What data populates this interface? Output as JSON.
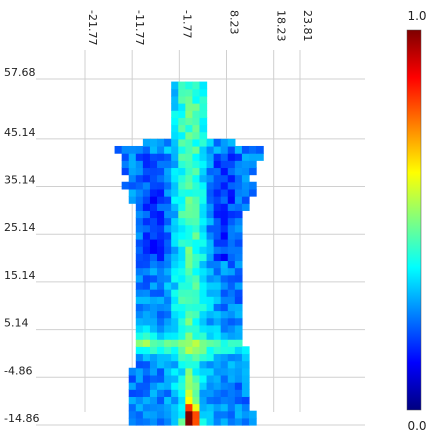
{
  "chart_data": {
    "type": "heatmap",
    "title": "",
    "xlabel": "",
    "ylabel": "",
    "x_ticks": [
      "-21.77",
      "-11.77",
      "-1.77",
      "8.23",
      "18.23",
      "23.81"
    ],
    "y_ticks": [
      "57.68",
      "45.14",
      "35.14",
      "25.14",
      "15.14",
      "5.14",
      "-4.86",
      "-14.86"
    ],
    "xlim": [
      -21.77,
      23.81
    ],
    "ylim": [
      -14.86,
      57.68
    ],
    "grid": true,
    "colorbar": {
      "min_label": "0.0",
      "max_label": "1.0",
      "colormap": "jet",
      "range": [
        0.0,
        1.0
      ]
    },
    "colormap_stops": [
      "#00007f",
      "#0000ff",
      "#007fff",
      "#00ffff",
      "#7fff7f",
      "#ffff00",
      "#ff7f00",
      "#ff0000",
      "#7f0000"
    ],
    "cell_size": [
      1.5,
      1.5
    ],
    "body_outline": {
      "neck": {
        "x": [
          -3.5,
          4.5
        ],
        "y": [
          45.14,
          57.68
        ]
      },
      "shoulders": {
        "x": [
          -16.5,
          17.5
        ],
        "y": [
          36.5,
          45.5
        ]
      },
      "torso": {
        "x": [
          -11.0,
          12.0
        ],
        "y": [
          -14.86,
          42.0
        ]
      },
      "hips_flare": {
        "x": [
          -13.0,
          14.0
        ],
        "y": [
          -14.86,
          4.0
        ]
      }
    },
    "intensity_features": {
      "background": 0.25,
      "spine_centerline_x": 0.5,
      "spine_value": 0.45,
      "waist_band_y": 2.0,
      "waist_band_value": 0.4,
      "hotspot": {
        "x": 0.7,
        "y": -13.5,
        "value": 1.0
      },
      "hotspot_streak_value": 0.6
    }
  }
}
